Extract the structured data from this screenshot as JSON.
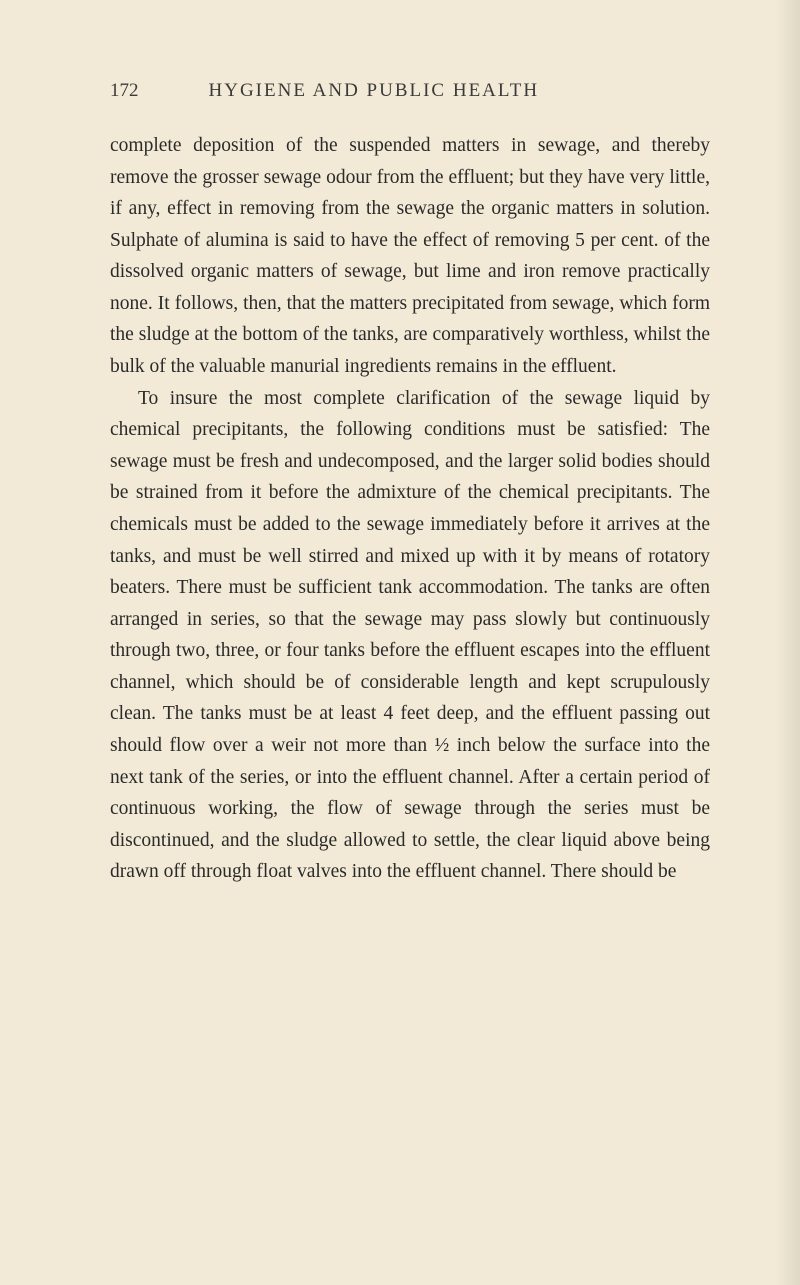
{
  "page": {
    "number": "172",
    "title": "HYGIENE AND PUBLIC HEALTH",
    "background_color": "#f2ead6",
    "text_color": "#2a2a2a",
    "header_color": "#3a3a3a",
    "body_fontsize": 19.5,
    "header_fontsize": 19,
    "line_height": 1.62,
    "paragraphs": [
      "complete deposition of the suspended matters in sewage, and thereby remove the grosser sewage odour from the effluent; but they have very little, if any, effect in removing from the sewage the organic matters in solution. Sulphate of alumina is said to have the effect of removing 5 per cent. of the dissolved organic matters of sewage, but lime and iron remove practically none. It follows, then, that the matters precipitated from sewage, which form the sludge at the bottom of the tanks, are comparatively worthless, whilst the bulk of the valuable manurial ingredients remains in the effluent.",
      "To insure the most complete clarification of the sewage liquid by chemical precipitants, the following conditions must be satisfied: The sewage must be fresh and undecomposed, and the larger solid bodies should be strained from it before the admixture of the chemical precipitants. The chemicals must be added to the sewage immediately before it arrives at the tanks, and must be well stirred and mixed up with it by means of rotatory beaters. There must be sufficient tank accommodation. The tanks are often arranged in series, so that the sewage may pass slowly but continuously through two, three, or four tanks before the effluent escapes into the effluent channel, which should be of considerable length and kept scrupulously clean. The tanks must be at least 4 feet deep, and the effluent passing out should flow over a weir not more than ½ inch below the surface into the next tank of the series, or into the effluent channel. After a certain period of continuous working, the flow of sewage through the series must be discontinued, and the sludge allowed to settle, the clear liquid above being drawn off through float valves into the effluent channel. There should be"
    ]
  }
}
